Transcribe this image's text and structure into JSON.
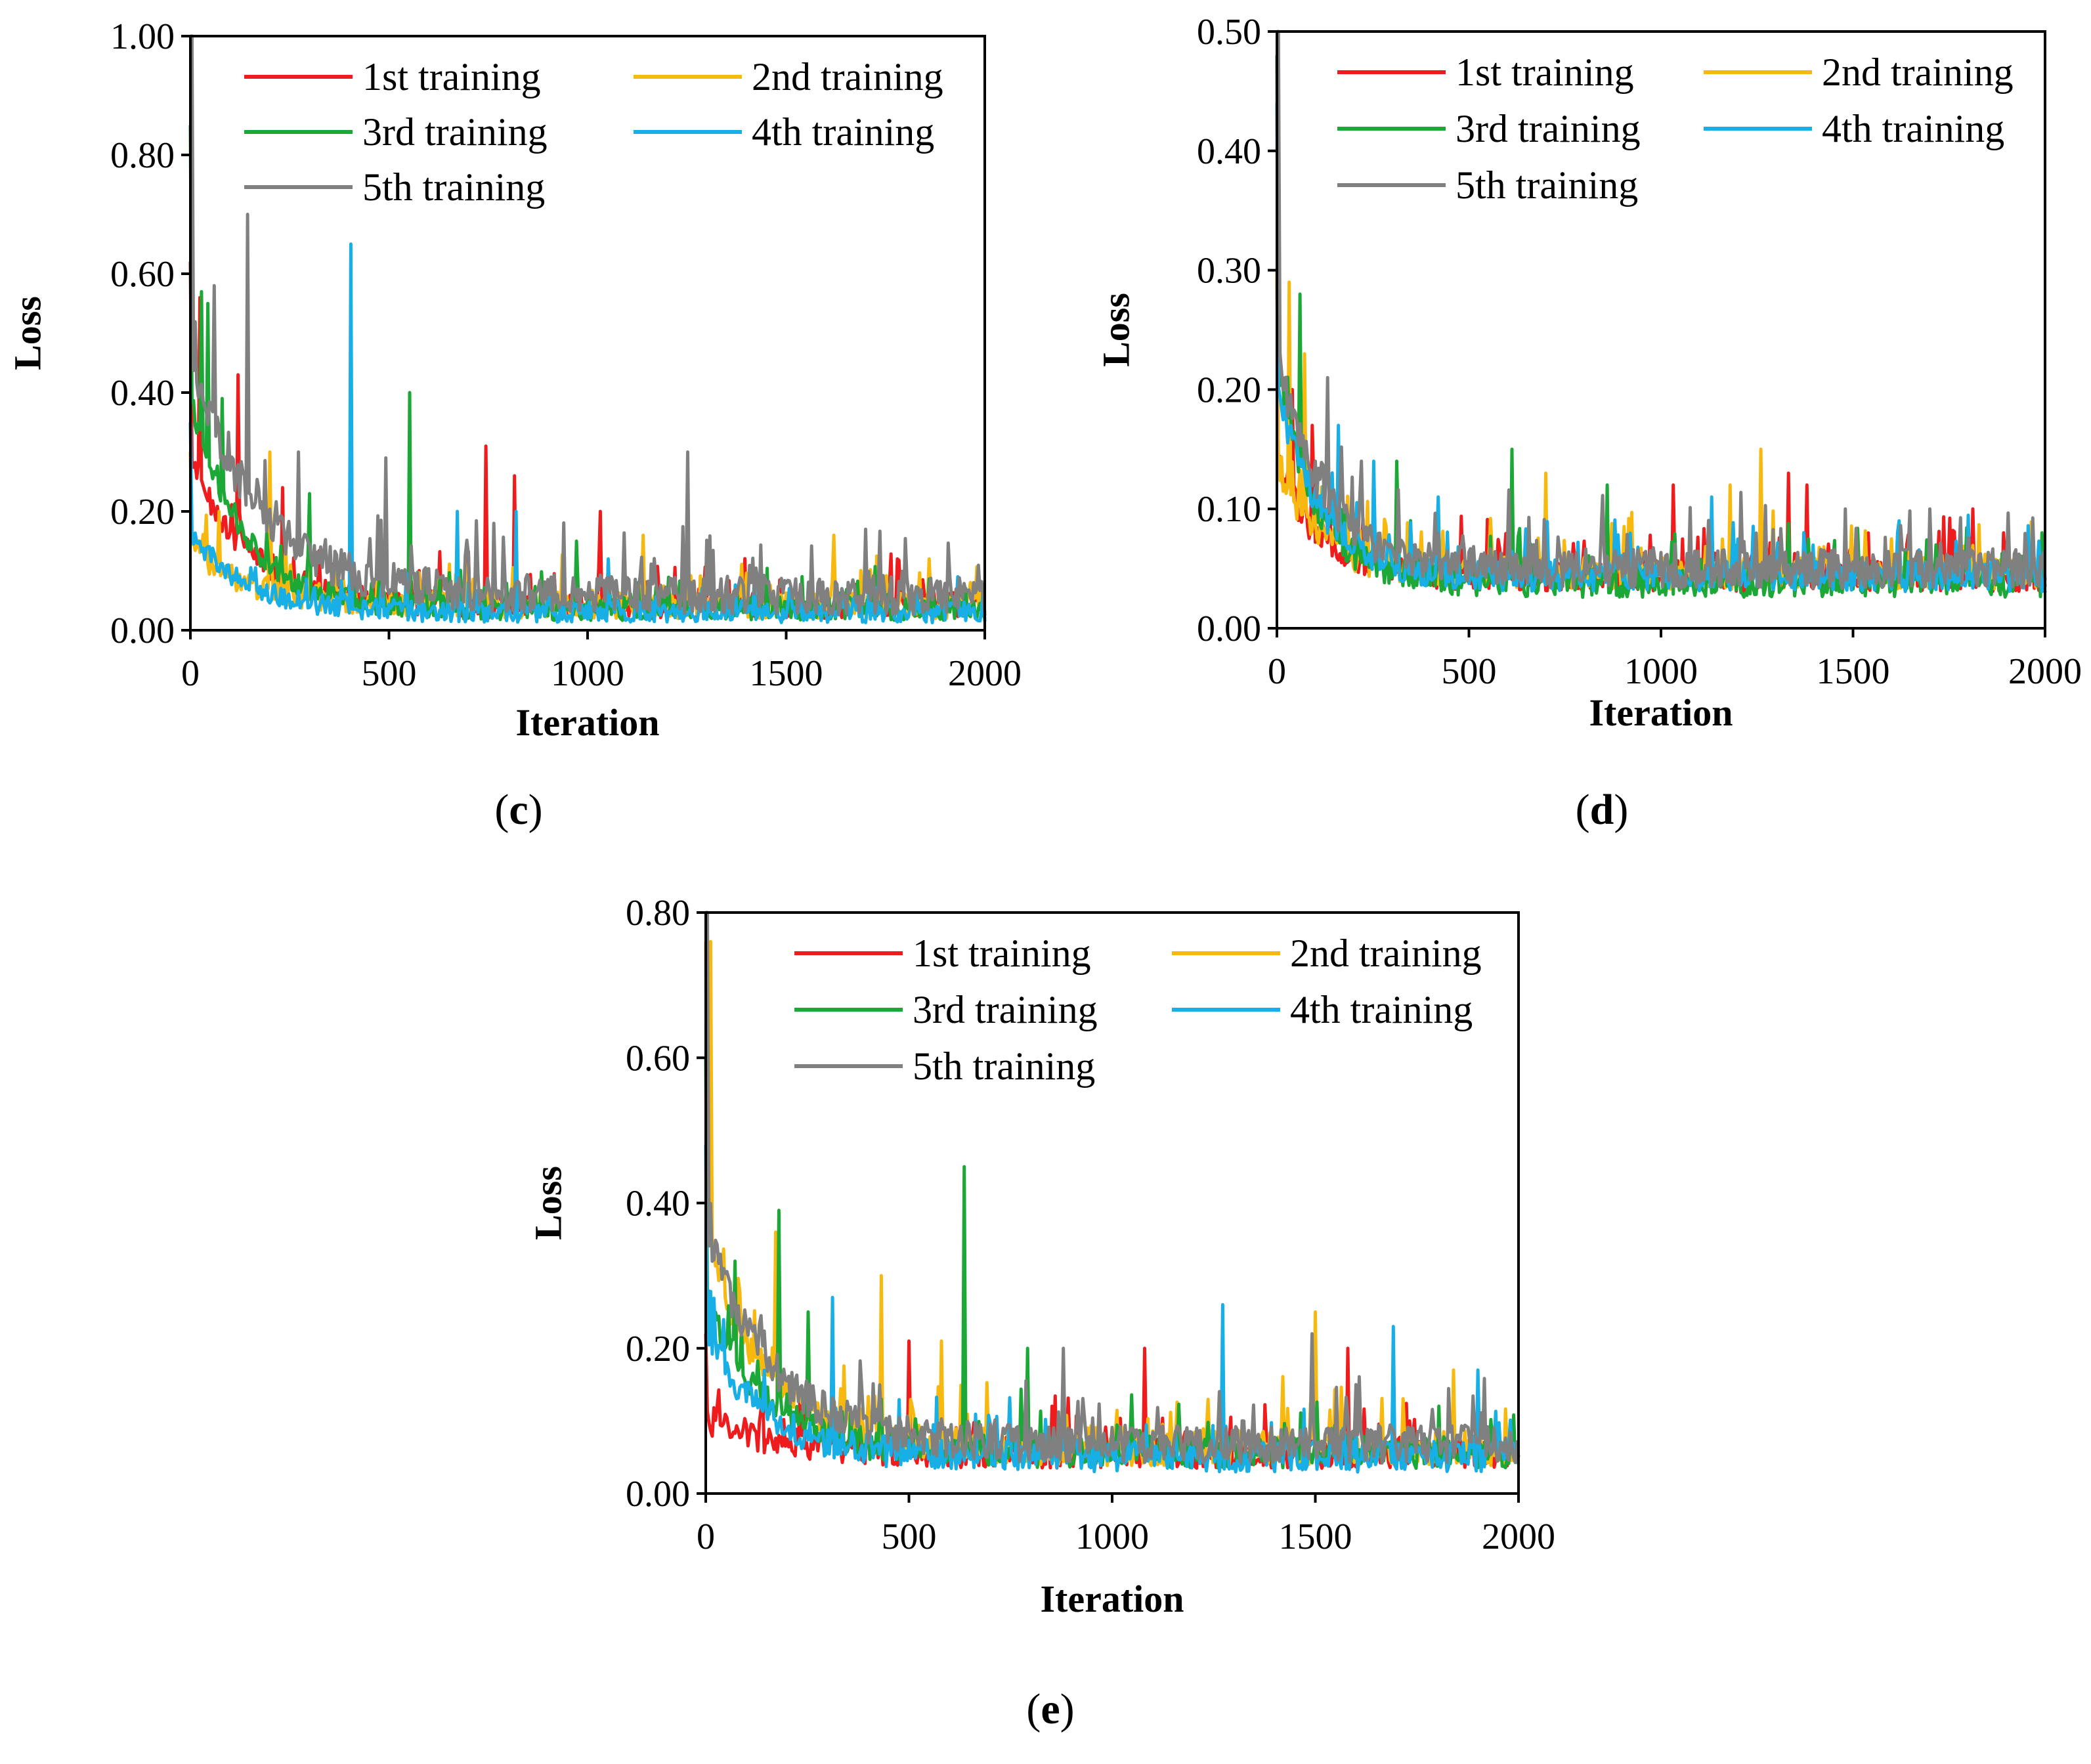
{
  "chart_data": [
    {
      "type": "line",
      "panel": "c",
      "xlabel": "Iteration",
      "ylabel": "Loss",
      "xlim": [
        0,
        2000
      ],
      "ylim": [
        0,
        1.0
      ],
      "xticks": [
        "0",
        "500",
        "1000",
        "1500",
        "2000"
      ],
      "yticks": [
        "0.00",
        "0.20",
        "0.40",
        "0.60",
        "0.80",
        "1.00"
      ],
      "legend_position": "top-right",
      "series": [
        {
          "name": "1st training",
          "color": "#ee1c1c",
          "start": 0.62,
          "floor": 0.035,
          "decay": 150,
          "noise": 0.02,
          "end": 0.025,
          "spikes": [
            [
              25,
              0.56
            ],
            [
              120,
              0.43
            ],
            [
              230,
              0.24
            ],
            [
              745,
              0.31
            ],
            [
              815,
              0.26
            ],
            [
              1030,
              0.2
            ],
            [
              1780,
              0.12
            ]
          ]
        },
        {
          "name": "2nd training",
          "color": "#f7b90f",
          "start": 0.3,
          "floor": 0.035,
          "decay": 150,
          "noise": 0.02,
          "end": 0.025,
          "spikes": [
            [
              70,
              0.2
            ],
            [
              200,
              0.3
            ],
            [
              470,
              0.17
            ],
            [
              1140,
              0.16
            ],
            [
              1620,
              0.16
            ],
            [
              1860,
              0.12
            ]
          ]
        },
        {
          "name": "3rd training",
          "color": "#1ba836",
          "start": 0.85,
          "floor": 0.03,
          "decay": 130,
          "noise": 0.018,
          "end": 0.02,
          "spikes": [
            [
              28,
              0.57
            ],
            [
              45,
              0.55
            ],
            [
              80,
              0.39
            ],
            [
              300,
              0.23
            ],
            [
              550,
              0.4
            ],
            [
              970,
              0.15
            ]
          ]
        },
        {
          "name": "4th training",
          "color": "#18aee6",
          "start": 0.35,
          "floor": 0.025,
          "decay": 140,
          "noise": 0.016,
          "end": 0.015,
          "spikes": [
            [
              405,
              0.65
            ],
            [
              670,
              0.2
            ],
            [
              820,
              0.2
            ],
            [
              1050,
              0.12
            ],
            [
              1930,
              0.09
            ]
          ]
        },
        {
          "name": "5th training",
          "color": "#808080",
          "start": 1.0,
          "floor": 0.05,
          "decay": 170,
          "noise": 0.03,
          "end": 0.03,
          "spikes": [
            [
              5,
              1.0
            ],
            [
              60,
              0.58
            ],
            [
              145,
              0.7
            ],
            [
              270,
              0.3
            ],
            [
              490,
              0.29
            ],
            [
              1250,
              0.3
            ],
            [
              1700,
              0.17
            ]
          ]
        }
      ]
    },
    {
      "type": "line",
      "panel": "d",
      "xlabel": "Iteration",
      "ylabel": "Loss",
      "xlim": [
        0,
        2000
      ],
      "ylim": [
        0,
        0.5
      ],
      "xticks": [
        "0",
        "500",
        "1000",
        "1500",
        "2000"
      ],
      "yticks": [
        "0.00",
        "0.10",
        "0.20",
        "0.30",
        "0.40",
        "0.50"
      ],
      "legend_position": "top-right",
      "series": [
        {
          "name": "1st training",
          "color": "#ee1c1c",
          "start": 0.3,
          "floor": 0.04,
          "decay": 110,
          "noise": 0.012,
          "end": 0.03,
          "spikes": [
            [
              40,
              0.2
            ],
            [
              90,
              0.17
            ],
            [
              1030,
              0.12
            ],
            [
              1330,
              0.13
            ],
            [
              1380,
              0.12
            ],
            [
              1810,
              0.1
            ]
          ]
        },
        {
          "name": "2nd training",
          "color": "#f7b90f",
          "start": 0.3,
          "floor": 0.042,
          "decay": 110,
          "noise": 0.012,
          "end": 0.035,
          "spikes": [
            [
              30,
              0.29
            ],
            [
              70,
              0.23
            ],
            [
              700,
              0.13
            ],
            [
              1260,
              0.15
            ],
            [
              1180,
              0.12
            ],
            [
              1510,
              0.08
            ]
          ]
        },
        {
          "name": "3rd training",
          "color": "#1ba836",
          "start": 0.48,
          "floor": 0.035,
          "decay": 100,
          "noise": 0.012,
          "end": 0.035,
          "spikes": [
            [
              60,
              0.28
            ],
            [
              310,
              0.14
            ],
            [
              610,
              0.15
            ],
            [
              860,
              0.12
            ],
            [
              1990,
              0.08
            ]
          ]
        },
        {
          "name": "4th training",
          "color": "#18aee6",
          "start": 0.44,
          "floor": 0.04,
          "decay": 110,
          "noise": 0.012,
          "end": 0.035,
          "spikes": [
            [
              160,
              0.17
            ],
            [
              250,
              0.14
            ],
            [
              420,
              0.11
            ],
            [
              1130,
              0.11
            ],
            [
              1620,
              0.09
            ]
          ]
        },
        {
          "name": "5th training",
          "color": "#808080",
          "start": 0.5,
          "floor": 0.045,
          "decay": 120,
          "noise": 0.015,
          "end": 0.04,
          "spikes": [
            [
              5,
              0.5
            ],
            [
              130,
              0.21
            ],
            [
              220,
              0.14
            ],
            [
              1480,
              0.1
            ],
            [
              1700,
              0.1
            ]
          ]
        }
      ]
    },
    {
      "type": "line",
      "panel": "e",
      "xlabel": "Iteration",
      "ylabel": "Loss",
      "xlim": [
        0,
        2000
      ],
      "ylim": [
        0,
        0.8
      ],
      "xticks": [
        "0",
        "500",
        "1000",
        "1500",
        "2000"
      ],
      "yticks": [
        "0.00",
        "0.20",
        "0.40",
        "0.60",
        "0.80"
      ],
      "legend_position": "top-right",
      "series": [
        {
          "name": "1st training",
          "color": "#ee1c1c",
          "start": 0.22,
          "floor": 0.05,
          "decay": 160,
          "noise": 0.02,
          "end": 0.05,
          "spikes": [
            [
              500,
              0.21
            ],
            [
              1080,
              0.2
            ],
            [
              1580,
              0.2
            ],
            [
              1980,
              0.1
            ]
          ]
        },
        {
          "name": "2nd training",
          "color": "#f7b90f",
          "start": 0.76,
          "floor": 0.055,
          "decay": 150,
          "noise": 0.022,
          "end": 0.05,
          "spikes": [
            [
              10,
              0.76
            ],
            [
              170,
              0.36
            ],
            [
              430,
              0.3
            ],
            [
              580,
              0.21
            ],
            [
              1500,
              0.25
            ],
            [
              1840,
              0.17
            ]
          ]
        },
        {
          "name": "3rd training",
          "color": "#1ba836",
          "start": 0.6,
          "floor": 0.05,
          "decay": 140,
          "noise": 0.02,
          "end": 0.05,
          "spikes": [
            [
              70,
              0.32
            ],
            [
              180,
              0.39
            ],
            [
              250,
              0.25
            ],
            [
              635,
              0.45
            ],
            [
              790,
              0.2
            ]
          ]
        },
        {
          "name": "4th training",
          "color": "#18aee6",
          "start": 0.48,
          "floor": 0.045,
          "decay": 140,
          "noise": 0.02,
          "end": 0.04,
          "spikes": [
            [
              310,
              0.27
            ],
            [
              1270,
              0.26
            ],
            [
              1690,
              0.23
            ],
            [
              1900,
              0.17
            ]
          ]
        },
        {
          "name": "5th training",
          "color": "#808080",
          "start": 0.8,
          "floor": 0.06,
          "decay": 160,
          "noise": 0.024,
          "end": 0.05,
          "spikes": [
            [
              3,
              0.8
            ],
            [
              110,
              0.23
            ],
            [
              880,
              0.2
            ],
            [
              1490,
              0.22
            ],
            [
              1600,
              0.15
            ]
          ]
        }
      ]
    }
  ],
  "panels": [
    {
      "label_open": "(",
      "letter": "c",
      "label_close": ")"
    },
    {
      "label_open": "(",
      "letter": "d",
      "label_close": ")"
    },
    {
      "label_open": "(",
      "letter": "e",
      "label_close": ")"
    }
  ]
}
